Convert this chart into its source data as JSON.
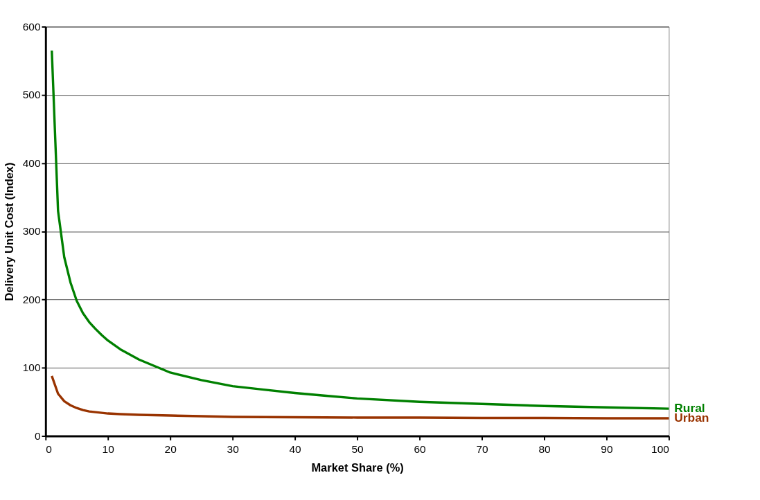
{
  "chart_data": {
    "type": "line",
    "xlabel": "Market Share (%)",
    "ylabel": "Delivery Unit Cost (Index)",
    "xlim": [
      0,
      100
    ],
    "xticks": [
      0,
      10,
      20,
      30,
      40,
      50,
      60,
      70,
      80,
      90,
      100
    ],
    "ylim": [
      0,
      600
    ],
    "yticks": [
      0,
      100,
      200,
      300,
      400,
      500,
      600
    ],
    "grid": "y",
    "legend": false,
    "marker": "none",
    "line_style": "solid",
    "series": [
      {
        "name": "Rural",
        "color": "#008000",
        "x": [
          1,
          2,
          3,
          4,
          5,
          6,
          7,
          8,
          9,
          10,
          12,
          15,
          20,
          25,
          30,
          35,
          40,
          45,
          50,
          60,
          70,
          80,
          90,
          100
        ],
        "values": [
          565,
          330,
          262,
          225,
          198,
          180,
          167,
          157,
          148,
          140,
          127,
          112,
          93,
          82,
          73,
          68,
          63,
          59,
          55,
          50,
          47,
          44,
          42,
          40
        ]
      },
      {
        "name": "Urban",
        "color": "#993300",
        "x": [
          1,
          2,
          3,
          4,
          5,
          6,
          7,
          8,
          10,
          12,
          15,
          20,
          25,
          30,
          40,
          50,
          60,
          70,
          80,
          90,
          100
        ],
        "values": [
          88,
          62,
          51,
          45,
          41,
          38,
          36,
          35,
          33,
          32,
          31,
          30,
          29,
          28,
          27.5,
          27,
          27,
          26.5,
          26.5,
          26,
          26
        ]
      }
    ]
  }
}
